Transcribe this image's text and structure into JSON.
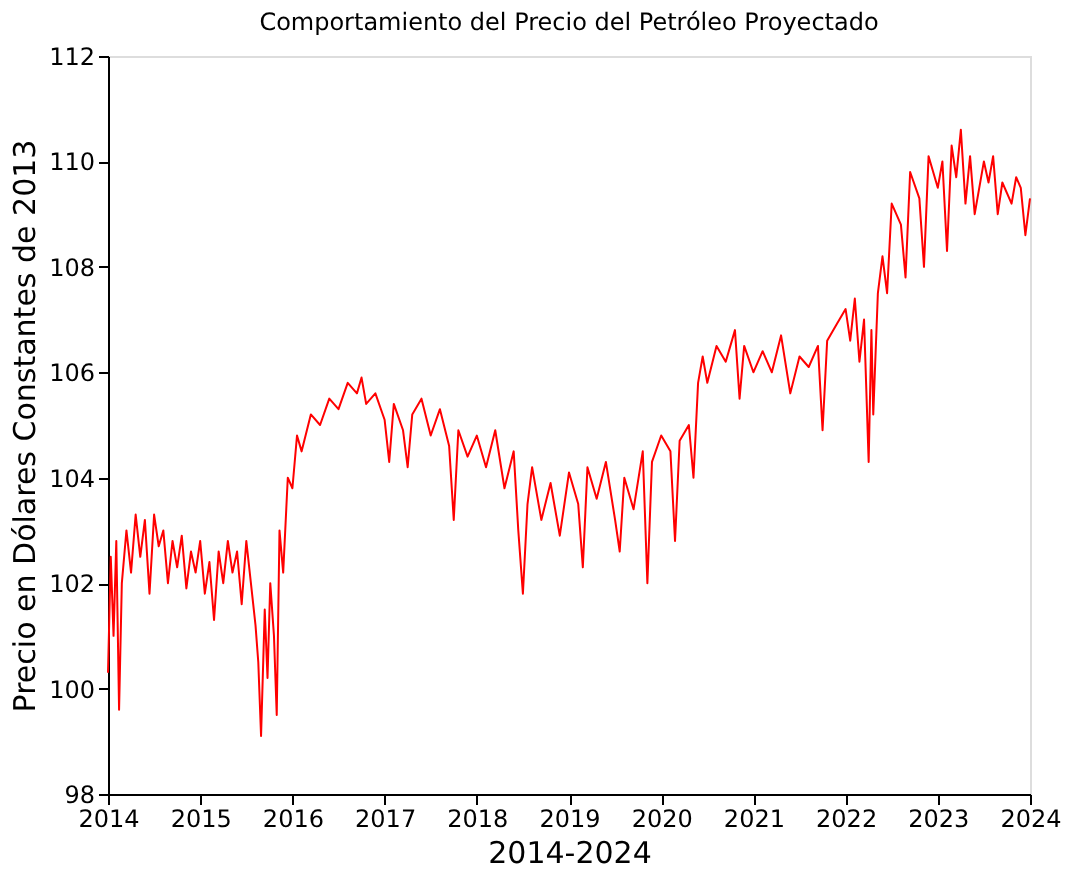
{
  "chart_data": {
    "type": "line",
    "title": "Comportamiento del Precio del Petróleo Proyectado",
    "xlabel": "2014-2024",
    "ylabel": "Precio en Dólares Constantes de 2013",
    "x": [
      2014.0,
      2014.03,
      2014.06,
      2014.09,
      2014.12,
      2014.15,
      2014.2,
      2014.25,
      2014.3,
      2014.35,
      2014.4,
      2014.45,
      2014.5,
      2014.55,
      2014.6,
      2014.65,
      2014.7,
      2014.75,
      2014.8,
      2014.85,
      2014.9,
      2014.95,
      2015.0,
      2015.05,
      2015.1,
      2015.15,
      2015.2,
      2015.25,
      2015.3,
      2015.35,
      2015.4,
      2015.45,
      2015.5,
      2015.55,
      2015.6,
      2015.63,
      2015.66,
      2015.7,
      2015.73,
      2015.76,
      2015.8,
      2015.83,
      2015.86,
      2015.9,
      2015.95,
      2016.0,
      2016.05,
      2016.1,
      2016.2,
      2016.3,
      2016.4,
      2016.5,
      2016.6,
      2016.7,
      2016.75,
      2016.8,
      2016.9,
      2017.0,
      2017.05,
      2017.1,
      2017.2,
      2017.25,
      2017.3,
      2017.4,
      2017.5,
      2017.6,
      2017.7,
      2017.75,
      2017.8,
      2017.9,
      2018.0,
      2018.1,
      2018.2,
      2018.3,
      2018.4,
      2018.45,
      2018.5,
      2018.55,
      2018.6,
      2018.7,
      2018.8,
      2018.9,
      2019.0,
      2019.1,
      2019.15,
      2019.2,
      2019.3,
      2019.4,
      2019.5,
      2019.55,
      2019.6,
      2019.7,
      2019.8,
      2019.85,
      2019.9,
      2020.0,
      2020.1,
      2020.15,
      2020.2,
      2020.3,
      2020.35,
      2020.4,
      2020.45,
      2020.5,
      2020.6,
      2020.7,
      2020.8,
      2020.85,
      2020.9,
      2021.0,
      2021.1,
      2021.2,
      2021.3,
      2021.4,
      2021.5,
      2021.6,
      2021.7,
      2021.75,
      2021.8,
      2021.9,
      2022.0,
      2022.05,
      2022.1,
      2022.15,
      2022.2,
      2022.25,
      2022.28,
      2022.3,
      2022.35,
      2022.4,
      2022.45,
      2022.5,
      2022.6,
      2022.65,
      2022.7,
      2022.8,
      2022.85,
      2022.9,
      2023.0,
      2023.05,
      2023.1,
      2023.15,
      2023.2,
      2023.25,
      2023.3,
      2023.35,
      2023.4,
      2023.5,
      2023.55,
      2023.6,
      2023.65,
      2023.7,
      2023.8,
      2023.85,
      2023.9,
      2023.95,
      2024.0
    ],
    "series": [
      {
        "color": "#ff0000",
        "values": [
          100.3,
          102.5,
          101.0,
          102.8,
          99.6,
          102.0,
          103.0,
          102.2,
          103.3,
          102.5,
          103.2,
          101.8,
          103.3,
          102.7,
          103.0,
          102.0,
          102.8,
          102.3,
          102.9,
          101.9,
          102.6,
          102.2,
          102.8,
          101.8,
          102.4,
          101.3,
          102.6,
          102.0,
          102.8,
          102.2,
          102.6,
          101.6,
          102.8,
          102.0,
          101.2,
          100.5,
          99.1,
          101.5,
          100.2,
          102.0,
          101.0,
          99.5,
          103.0,
          102.2,
          104.0,
          103.8,
          104.8,
          104.5,
          105.2,
          105.0,
          105.5,
          105.3,
          105.8,
          105.6,
          105.9,
          105.4,
          105.6,
          105.1,
          104.3,
          105.4,
          104.9,
          104.2,
          105.2,
          105.5,
          104.8,
          105.3,
          104.6,
          103.2,
          104.9,
          104.4,
          104.8,
          104.2,
          104.9,
          103.8,
          104.5,
          103.0,
          101.8,
          103.5,
          104.2,
          103.2,
          103.9,
          102.9,
          104.1,
          103.5,
          102.3,
          104.2,
          103.6,
          104.3,
          103.2,
          102.6,
          104.0,
          103.4,
          104.5,
          102.0,
          104.3,
          104.8,
          104.5,
          102.8,
          104.7,
          105.0,
          104.0,
          105.8,
          106.3,
          105.8,
          106.5,
          106.2,
          106.8,
          105.5,
          106.5,
          106.0,
          106.4,
          106.0,
          106.7,
          105.6,
          106.3,
          106.1,
          106.5,
          104.9,
          106.6,
          106.9,
          107.2,
          106.6,
          107.4,
          106.2,
          107.0,
          104.3,
          106.8,
          105.2,
          107.5,
          108.2,
          107.5,
          109.2,
          108.8,
          107.8,
          109.8,
          109.3,
          108.0,
          110.1,
          109.5,
          110.0,
          108.3,
          110.3,
          109.7,
          110.6,
          109.2,
          110.1,
          109.0,
          110.0,
          109.6,
          110.1,
          109.0,
          109.6,
          109.2,
          109.7,
          109.5,
          108.6,
          109.3
        ]
      }
    ],
    "xlim": [
      2014,
      2024
    ],
    "xticks": [
      2014,
      2015,
      2016,
      2017,
      2018,
      2019,
      2020,
      2021,
      2022,
      2023,
      2024
    ],
    "ylim": [
      98,
      112
    ],
    "yticks": [
      98,
      100,
      102,
      104,
      106,
      108,
      110,
      112
    ],
    "grid": false,
    "legend": false
  }
}
